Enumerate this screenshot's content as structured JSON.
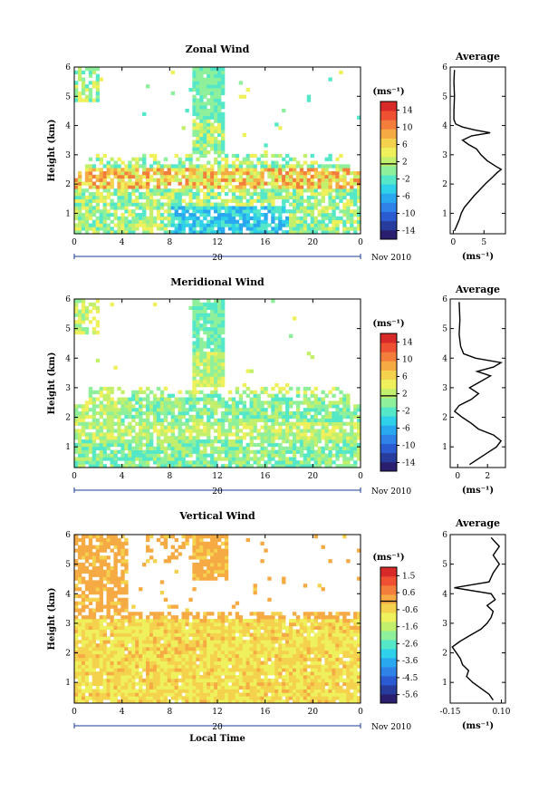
{
  "chart_data": [
    {
      "type": "heatmap",
      "title": "Zonal Wind",
      "ylabel": "Height (km)",
      "xlabel": "",
      "date_label": "20",
      "month_label": "Nov 2010",
      "x_ticks": [
        "0",
        "4",
        "8",
        "12",
        "16",
        "20",
        "0"
      ],
      "y_ticks": [
        "1",
        "2",
        "3",
        "4",
        "5",
        "6"
      ],
      "xlim": [
        0,
        24
      ],
      "ylim": [
        0.3,
        6
      ],
      "colorbar": {
        "unit": "(ms⁻¹)",
        "ticks": [
          "14",
          "10",
          "6",
          "2",
          "-2",
          "-6",
          "-10",
          "-14"
        ],
        "range": [
          -16,
          16
        ],
        "zero_line": 1.5
      },
      "profile": {
        "title": "Average",
        "xlabel": "(ms⁻¹)",
        "x_ticks": [
          "0",
          "5"
        ],
        "xlim": [
          -0.5,
          8.5
        ],
        "points": [
          [
            0.2,
            0.4
          ],
          [
            0.6,
            0.6
          ],
          [
            1.0,
            0.8
          ],
          [
            1.3,
            1.0
          ],
          [
            1.8,
            1.2
          ],
          [
            2.6,
            1.4
          ],
          [
            3.4,
            1.6
          ],
          [
            4.3,
            1.8
          ],
          [
            5.2,
            2.0
          ],
          [
            6.2,
            2.2
          ],
          [
            7.2,
            2.4
          ],
          [
            7.8,
            2.5
          ],
          [
            7.0,
            2.6
          ],
          [
            5.5,
            2.8
          ],
          [
            4.5,
            3.0
          ],
          [
            3.8,
            3.2
          ],
          [
            2.5,
            3.35
          ],
          [
            1.5,
            3.5
          ],
          [
            3.0,
            3.65
          ],
          [
            6.0,
            3.75
          ],
          [
            3.5,
            3.85
          ],
          [
            1.5,
            3.95
          ],
          [
            0.4,
            4.05
          ],
          [
            0.1,
            4.2
          ],
          [
            0.1,
            4.5
          ],
          [
            0.2,
            5.0
          ],
          [
            0.1,
            5.5
          ],
          [
            0.2,
            5.9
          ]
        ]
      }
    },
    {
      "type": "heatmap",
      "title": "Meridional Wind",
      "ylabel": "Height (km)",
      "xlabel": "",
      "date_label": "20",
      "month_label": "Nov 2010",
      "x_ticks": [
        "0",
        "4",
        "8",
        "12",
        "16",
        "20",
        "0"
      ],
      "y_ticks": [
        "1",
        "2",
        "3",
        "4",
        "5",
        "6"
      ],
      "xlim": [
        0,
        24
      ],
      "ylim": [
        0.3,
        6
      ],
      "colorbar": {
        "unit": "(ms⁻¹)",
        "ticks": [
          "14",
          "10",
          "6",
          "2",
          "-2",
          "-6",
          "-10",
          "-14"
        ],
        "range": [
          -16,
          16
        ],
        "zero_line": 1.5
      },
      "profile": {
        "title": "Average",
        "xlabel": "(ms⁻¹)",
        "x_ticks": [
          "0",
          "2"
        ],
        "xlim": [
          -0.5,
          3.2
        ],
        "points": [
          [
            0.8,
            0.4
          ],
          [
            1.4,
            0.6
          ],
          [
            2.0,
            0.8
          ],
          [
            2.6,
            1.0
          ],
          [
            2.9,
            1.2
          ],
          [
            2.4,
            1.4
          ],
          [
            1.4,
            1.6
          ],
          [
            0.9,
            1.8
          ],
          [
            0.3,
            2.0
          ],
          [
            -0.2,
            2.2
          ],
          [
            0.1,
            2.4
          ],
          [
            0.9,
            2.6
          ],
          [
            1.4,
            2.8
          ],
          [
            0.8,
            3.0
          ],
          [
            1.5,
            3.2
          ],
          [
            2.2,
            3.4
          ],
          [
            1.3,
            3.55
          ],
          [
            2.4,
            3.7
          ],
          [
            2.9,
            3.85
          ],
          [
            1.2,
            4.0
          ],
          [
            0.4,
            4.15
          ],
          [
            0.2,
            4.4
          ],
          [
            0.1,
            4.8
          ],
          [
            0.15,
            5.3
          ],
          [
            0.1,
            5.9
          ]
        ]
      }
    },
    {
      "type": "heatmap",
      "title": "Vertical Wind",
      "ylabel": "Height (km)",
      "xlabel": "Local Time",
      "date_label": "20",
      "month_label": "Nov 2010",
      "x_ticks": [
        "0",
        "4",
        "8",
        "12",
        "16",
        "20",
        "0"
      ],
      "y_ticks": [
        "1",
        "2",
        "3",
        "4",
        "5",
        "6"
      ],
      "xlim": [
        0,
        24
      ],
      "ylim": [
        0.3,
        6
      ],
      "colorbar": {
        "unit": "(ms⁻¹)",
        "ticks": [
          "1.5",
          "0.6",
          "-0.6",
          "-1.6",
          "-2.6",
          "-3.6",
          "-4.5",
          "-5.6"
        ],
        "range": [
          -6,
          2
        ],
        "zero_line": 0
      },
      "profile": {
        "title": "Average",
        "xlabel": "(ms⁻¹)",
        "x_ticks": [
          "-0.15",
          "0.10"
        ],
        "xlim": [
          -0.15,
          0.12
        ],
        "points": [
          [
            0.06,
            0.4
          ],
          [
            0.04,
            0.6
          ],
          [
            0.0,
            0.8
          ],
          [
            -0.04,
            1.0
          ],
          [
            -0.07,
            1.2
          ],
          [
            -0.06,
            1.4
          ],
          [
            -0.09,
            1.6
          ],
          [
            -0.1,
            1.8
          ],
          [
            -0.12,
            2.0
          ],
          [
            -0.14,
            2.2
          ],
          [
            -0.1,
            2.4
          ],
          [
            -0.05,
            2.6
          ],
          [
            0.0,
            2.8
          ],
          [
            0.03,
            3.0
          ],
          [
            0.05,
            3.2
          ],
          [
            0.06,
            3.4
          ],
          [
            0.03,
            3.6
          ],
          [
            0.07,
            3.8
          ],
          [
            0.05,
            4.0
          ],
          [
            -0.13,
            4.2
          ],
          [
            0.04,
            4.4
          ],
          [
            0.06,
            4.7
          ],
          [
            0.09,
            5.0
          ],
          [
            0.06,
            5.3
          ],
          [
            0.09,
            5.6
          ],
          [
            0.05,
            5.9
          ]
        ]
      }
    }
  ]
}
